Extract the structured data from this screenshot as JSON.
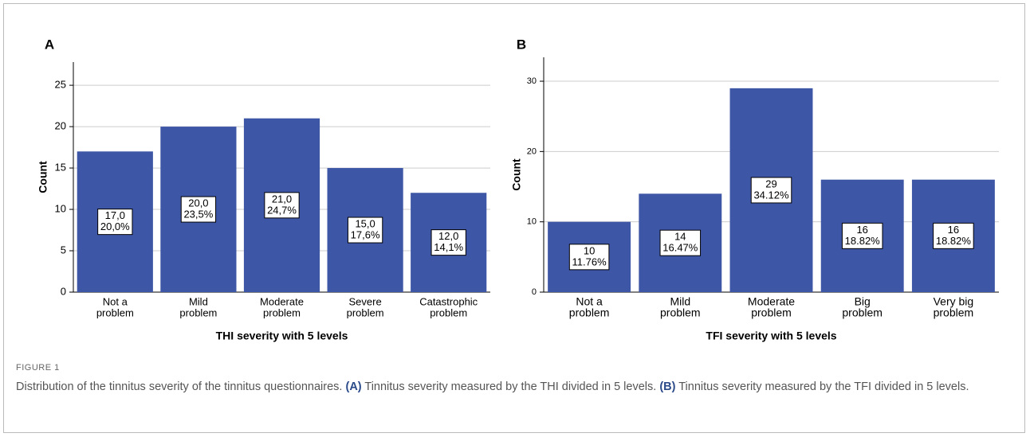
{
  "chart_data": [
    {
      "type": "bar",
      "panel": "A",
      "ylabel": "Count",
      "xlabel": "THI severity with 5 levels",
      "categories": [
        [
          "Not a",
          "problem"
        ],
        [
          "Mild",
          "problem"
        ],
        [
          "Moderate",
          "problem"
        ],
        [
          "Severe",
          "problem"
        ],
        [
          "Catastrophic",
          "problem"
        ]
      ],
      "values": [
        17,
        20,
        21,
        15,
        12
      ],
      "value_labels": [
        "17,0",
        "20,0",
        "21,0",
        "15,0",
        "12,0"
      ],
      "percent_labels": [
        "20,0%",
        "23,5%",
        "24,7%",
        "17,6%",
        "14,1%"
      ],
      "color": "#3e56a6",
      "ylim": [
        0,
        27.8
      ],
      "yticks": [
        0,
        5,
        10,
        15,
        20,
        25
      ],
      "grid": true
    },
    {
      "type": "bar",
      "panel": "B",
      "ylabel": "Count",
      "xlabel": "TFI severity with 5 levels",
      "categories": [
        [
          "Not a",
          "problem"
        ],
        [
          "Mild",
          "problem"
        ],
        [
          "Moderate",
          "problem"
        ],
        [
          "Big",
          "problem"
        ],
        [
          "Very big",
          "problem"
        ]
      ],
      "values": [
        10,
        14,
        29,
        16,
        16
      ],
      "percent_labels": [
        "11.76%",
        "16.47%",
        "34.12%",
        "18.82%",
        "18.82%"
      ],
      "color": "#3e56a6",
      "ylim": [
        0,
        33.4
      ],
      "yticks": [
        0,
        10,
        20,
        30
      ],
      "grid": true
    }
  ],
  "caption": {
    "label": "FIGURE 1",
    "parts": [
      "Distribution of the tinnitus severity of the tinnitus questionnaires. ",
      "(A)",
      " Tinnitus severity measured by the THI divided in 5 levels. ",
      "(B)",
      " Tinnitus severity measured by the TFI divided in 5 levels."
    ]
  }
}
